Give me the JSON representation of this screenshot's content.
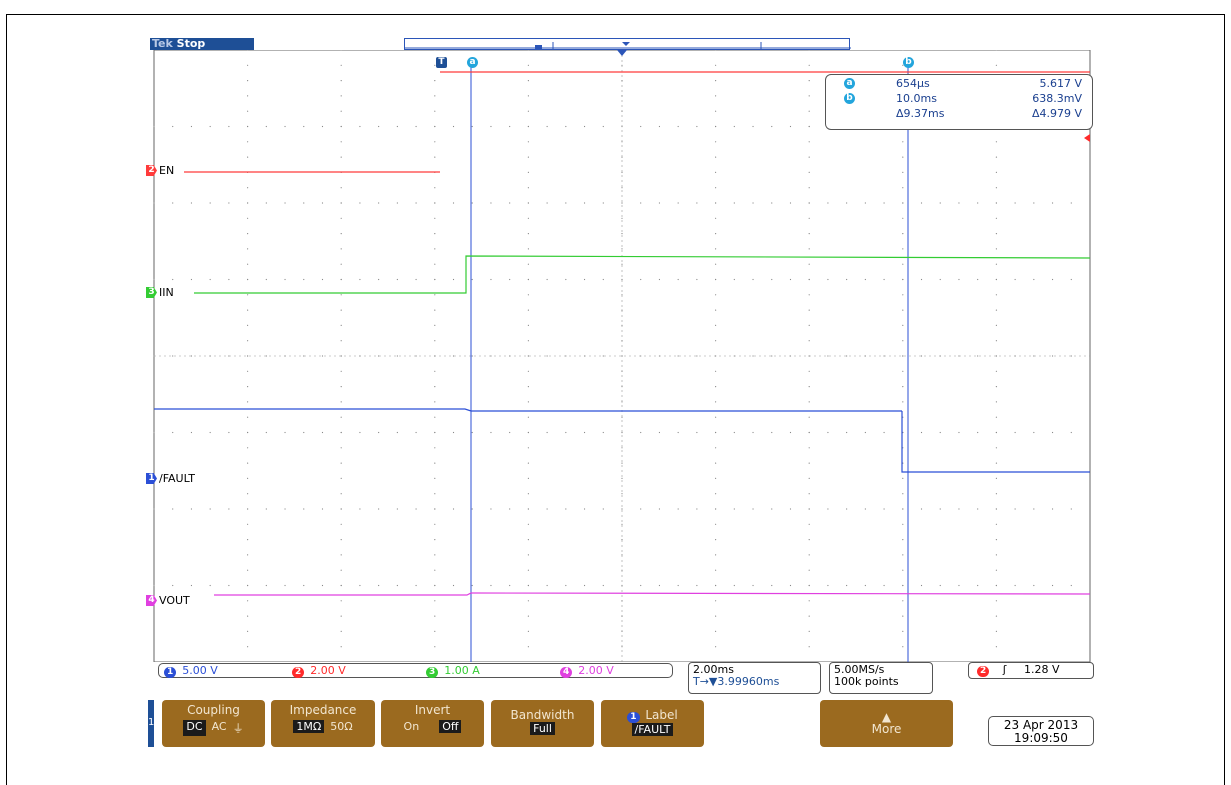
{
  "header_text": "",
  "scope": {
    "status": "Stop",
    "brand": "Tek",
    "trigger_marker": "T",
    "cursor_a_marker": "a",
    "cursor_b_marker": "b",
    "cursor_readout": {
      "a": {
        "icon": "a",
        "time": "654µs",
        "value": "5.617 V"
      },
      "b": {
        "icon": "b",
        "time": "10.0ms",
        "value": "638.3mV"
      },
      "delta": {
        "time": "Δ9.37ms",
        "value": "Δ4.979 V"
      }
    },
    "channels": [
      {
        "num": "2",
        "label": "EN",
        "color": "#ff3b3b"
      },
      {
        "num": "3",
        "label": "IIN",
        "color": "#33cc33"
      },
      {
        "num": "1",
        "label": "/FAULT",
        "color": "#2b4fd6"
      },
      {
        "num": "4",
        "label": "VOUT",
        "color": "#e040e0"
      }
    ],
    "status_bar": {
      "ch1": {
        "num": "1",
        "scale": "5.00 V",
        "color": "#2b4fd6"
      },
      "ch2": {
        "num": "2",
        "scale": "2.00 V",
        "color": "#ff2b2b"
      },
      "ch3": {
        "num": "3",
        "scale": "1.00 A",
        "color": "#33cc33"
      },
      "ch4": {
        "num": "4",
        "scale": "2.00 V",
        "color": "#e040e0"
      },
      "timebase": "2.00ms",
      "trigger_pos": "T→▼3.99960ms",
      "sample_rate": "5.00MS/s",
      "record_length": "100k points",
      "trigger_ch": "2",
      "trigger_slope": "ʃ",
      "trigger_level": "1.28 V"
    },
    "menu": {
      "side_label": "1",
      "coupling": {
        "title": "Coupling",
        "options": [
          "DC",
          "AC",
          "⏚"
        ],
        "selected": "DC"
      },
      "impedance": {
        "title": "Impedance",
        "options": [
          "1MΩ",
          "50Ω"
        ],
        "selected": "1MΩ"
      },
      "invert": {
        "title": "Invert",
        "options": [
          "On",
          "Off"
        ],
        "selected": "Off"
      },
      "bandwidth": {
        "title": "Bandwidth",
        "value": "Full"
      },
      "label": {
        "title": "Label",
        "chan": "1",
        "value": "/FAULT"
      },
      "more": {
        "title": "More",
        "arrow": "▲"
      }
    },
    "date": "23 Apr 2013",
    "time": "19:09:50"
  }
}
